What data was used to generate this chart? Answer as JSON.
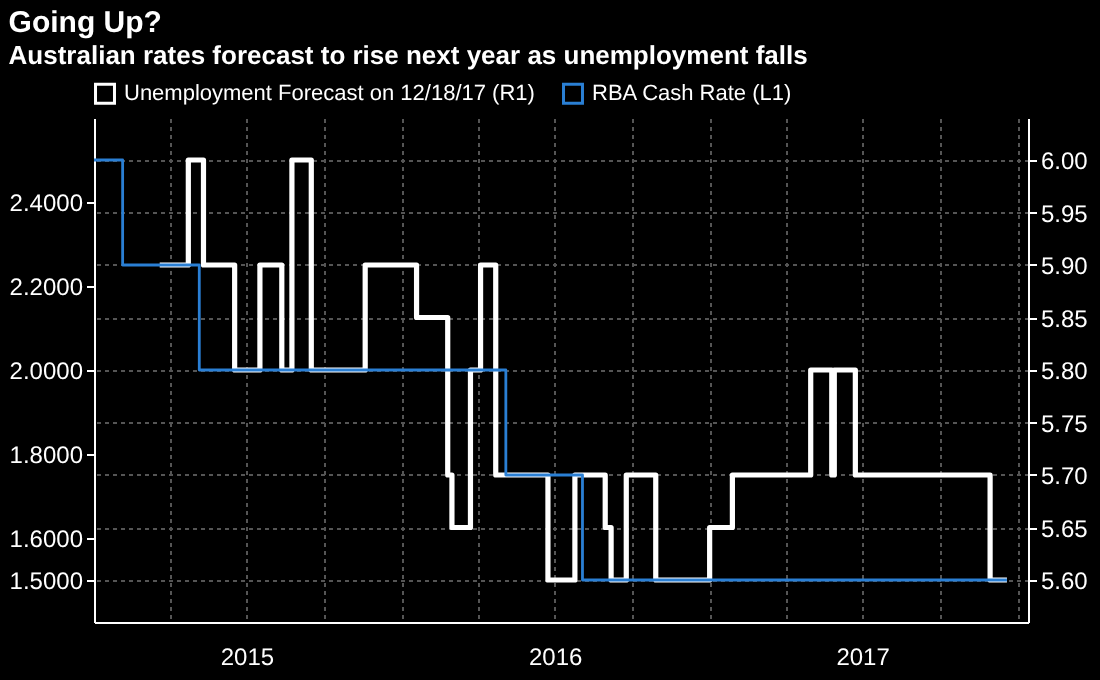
{
  "chart_data": {
    "type": "step",
    "title": "Going Up?",
    "subtitle": "Australian rates forecast to rise next year as unemployment falls",
    "legend": "top left",
    "grid": true,
    "xlim": [
      "2015-01-01",
      "2018-01-14"
    ],
    "xticks": [
      {
        "value": "2015-04-01",
        "label": null
      },
      {
        "value": "2015-07-01",
        "label": "2015"
      },
      {
        "value": "2015-10-01",
        "label": null
      },
      {
        "value": "2016-01-01",
        "label": null
      },
      {
        "value": "2016-04-01",
        "label": null
      },
      {
        "value": "2016-07-01",
        "label": "2016"
      },
      {
        "value": "2016-10-01",
        "label": null
      },
      {
        "value": "2017-01-01",
        "label": null
      },
      {
        "value": "2017-04-01",
        "label": null
      },
      {
        "value": "2017-07-01",
        "label": "2017"
      },
      {
        "value": "2017-10-01",
        "label": null
      },
      {
        "value": "2018-01-01",
        "label": null
      }
    ],
    "ylim": [
      1.4,
      2.6
    ],
    "yticks": [
      {
        "value": 2.4,
        "label": "2.4000"
      },
      {
        "value": 2.2,
        "label": "2.2000"
      },
      {
        "value": 2.0,
        "label": "2.0000"
      },
      {
        "value": 1.8,
        "label": "1.8000"
      },
      {
        "value": 1.6,
        "label": "1.6000"
      },
      {
        "value": 1.5,
        "label": "1.5000"
      }
    ],
    "y2lim": [
      5.56,
      6.04
    ],
    "y2ticks": [
      {
        "value": 6.0,
        "label": "6.00"
      },
      {
        "value": 5.95,
        "label": "5.95"
      },
      {
        "value": 5.9,
        "label": "5.90"
      },
      {
        "value": 5.85,
        "label": "5.85"
      },
      {
        "value": 5.8,
        "label": "5.80"
      },
      {
        "value": 5.75,
        "label": "5.75"
      },
      {
        "value": 5.7,
        "label": "5.70"
      },
      {
        "value": 5.65,
        "label": "5.65"
      },
      {
        "value": 5.6,
        "label": "5.60"
      }
    ],
    "series": [
      {
        "name": "Unemployment Forecast on 12/18/17 (R1)",
        "color": "#ffffff",
        "axis": "y2",
        "x": [
          "2015-03-20",
          "2015-04-23",
          "2015-05-11",
          "2015-06-17",
          "2015-07-17",
          "2015-08-12",
          "2015-08-24",
          "2015-09-16",
          "2015-11-19",
          "2016-01-19",
          "2016-02-25",
          "2016-03-01",
          "2016-03-23",
          "2016-04-04",
          "2016-04-22",
          "2016-06-23",
          "2016-07-25",
          "2016-08-30",
          "2016-09-06",
          "2016-09-24",
          "2016-10-29",
          "2017-01-01",
          "2017-01-28",
          "2017-05-01",
          "2017-05-26",
          "2017-05-29",
          "2017-06-23",
          "2017-11-30",
          "2017-12-20"
        ],
        "values": [
          5.9,
          6.0,
          5.9,
          5.8,
          5.9,
          5.8,
          6.0,
          5.8,
          5.9,
          5.85,
          5.7,
          5.65,
          5.8,
          5.9,
          5.7,
          5.6,
          5.7,
          5.65,
          5.6,
          5.7,
          5.6,
          5.65,
          5.7,
          5.8,
          5.7,
          5.8,
          5.7,
          5.6,
          5.6
        ]
      },
      {
        "name": "RBA Cash Rate (L1)",
        "color": "#2a7fd4",
        "x": [
          "2015-01-01",
          "2015-02-04",
          "2015-05-06",
          "2016-05-04",
          "2016-08-03",
          "2017-12-20"
        ],
        "values": [
          2.5,
          2.25,
          2.0,
          1.75,
          1.5,
          1.5
        ]
      }
    ]
  }
}
